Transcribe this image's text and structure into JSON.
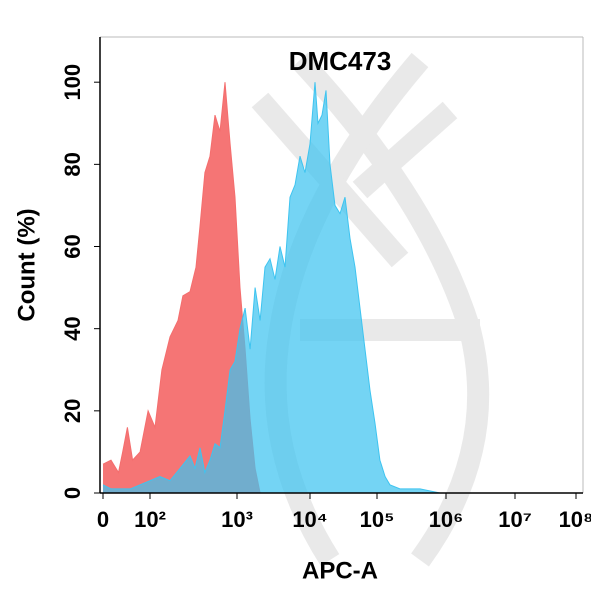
{
  "chart_data": {
    "type": "area",
    "title": "DMC473",
    "x_label": "APC-A",
    "y_label": "Count  (%)",
    "xlim": [
      0,
      100000000
    ],
    "xticks": [
      0,
      {
        "value": 100,
        "label": "10²"
      },
      {
        "value": 1000,
        "label": "10³"
      },
      {
        "value": 10000,
        "label": "10⁴"
      },
      {
        "value": 100000,
        "label": "10⁵"
      },
      {
        "value": 1000000,
        "label": "10⁶"
      },
      {
        "value": 10000000,
        "label": "10⁷"
      },
      {
        "value": 100000000,
        "label": "10⁸"
      }
    ],
    "ylim": [
      0,
      111
    ],
    "yticks": [
      0,
      20,
      40,
      60,
      80,
      100
    ],
    "series": [
      {
        "color": "#f46e6e",
        "x": [
          0,
          17,
          33,
          42,
          52,
          63,
          79,
          96,
          114,
          137,
          170,
          210,
          239,
          288,
          338,
          376,
          428,
          490,
          558,
          638,
          728,
          832,
          949,
          1100,
          1290,
          1510,
          1770,
          2070
        ],
        "values": [
          7,
          8,
          5,
          10,
          16,
          8,
          10,
          20,
          16,
          30,
          38,
          42,
          48,
          49,
          55,
          65,
          78,
          82,
          92,
          88,
          100,
          85,
          72,
          50,
          35,
          18,
          6,
          0
        ]
      },
      {
        "color": "#3ec4f0",
        "x": [
          0,
          17,
          38,
          58,
          79,
          100,
          130,
          170,
          221,
          288,
          329,
          376,
          428,
          490,
          558,
          638,
          728,
          832,
          949,
          1100,
          1290,
          1510,
          1770,
          2070,
          2420,
          2830,
          3320,
          3880,
          4550,
          5320,
          6240,
          7290,
          8550,
          10000,
          11880,
          13150,
          15100,
          17330,
          19900,
          23600,
          28000,
          33300,
          39500,
          47000,
          55700,
          66200,
          78700,
          93300,
          110000,
          131000,
          154000,
          215000,
          420000,
          819000
        ],
        "values": [
          2,
          1,
          1,
          1,
          2,
          3,
          4,
          3,
          6,
          9,
          6,
          11,
          5,
          8,
          12,
          11,
          20,
          30,
          32,
          40,
          45,
          35,
          50,
          42,
          55,
          57,
          52,
          60,
          55,
          72,
          75,
          82,
          78,
          85,
          100,
          90,
          92,
          98,
          80,
          70,
          68,
          72,
          62,
          55,
          45,
          35,
          25,
          17,
          8,
          4,
          2,
          1,
          1,
          0
        ]
      }
    ]
  }
}
